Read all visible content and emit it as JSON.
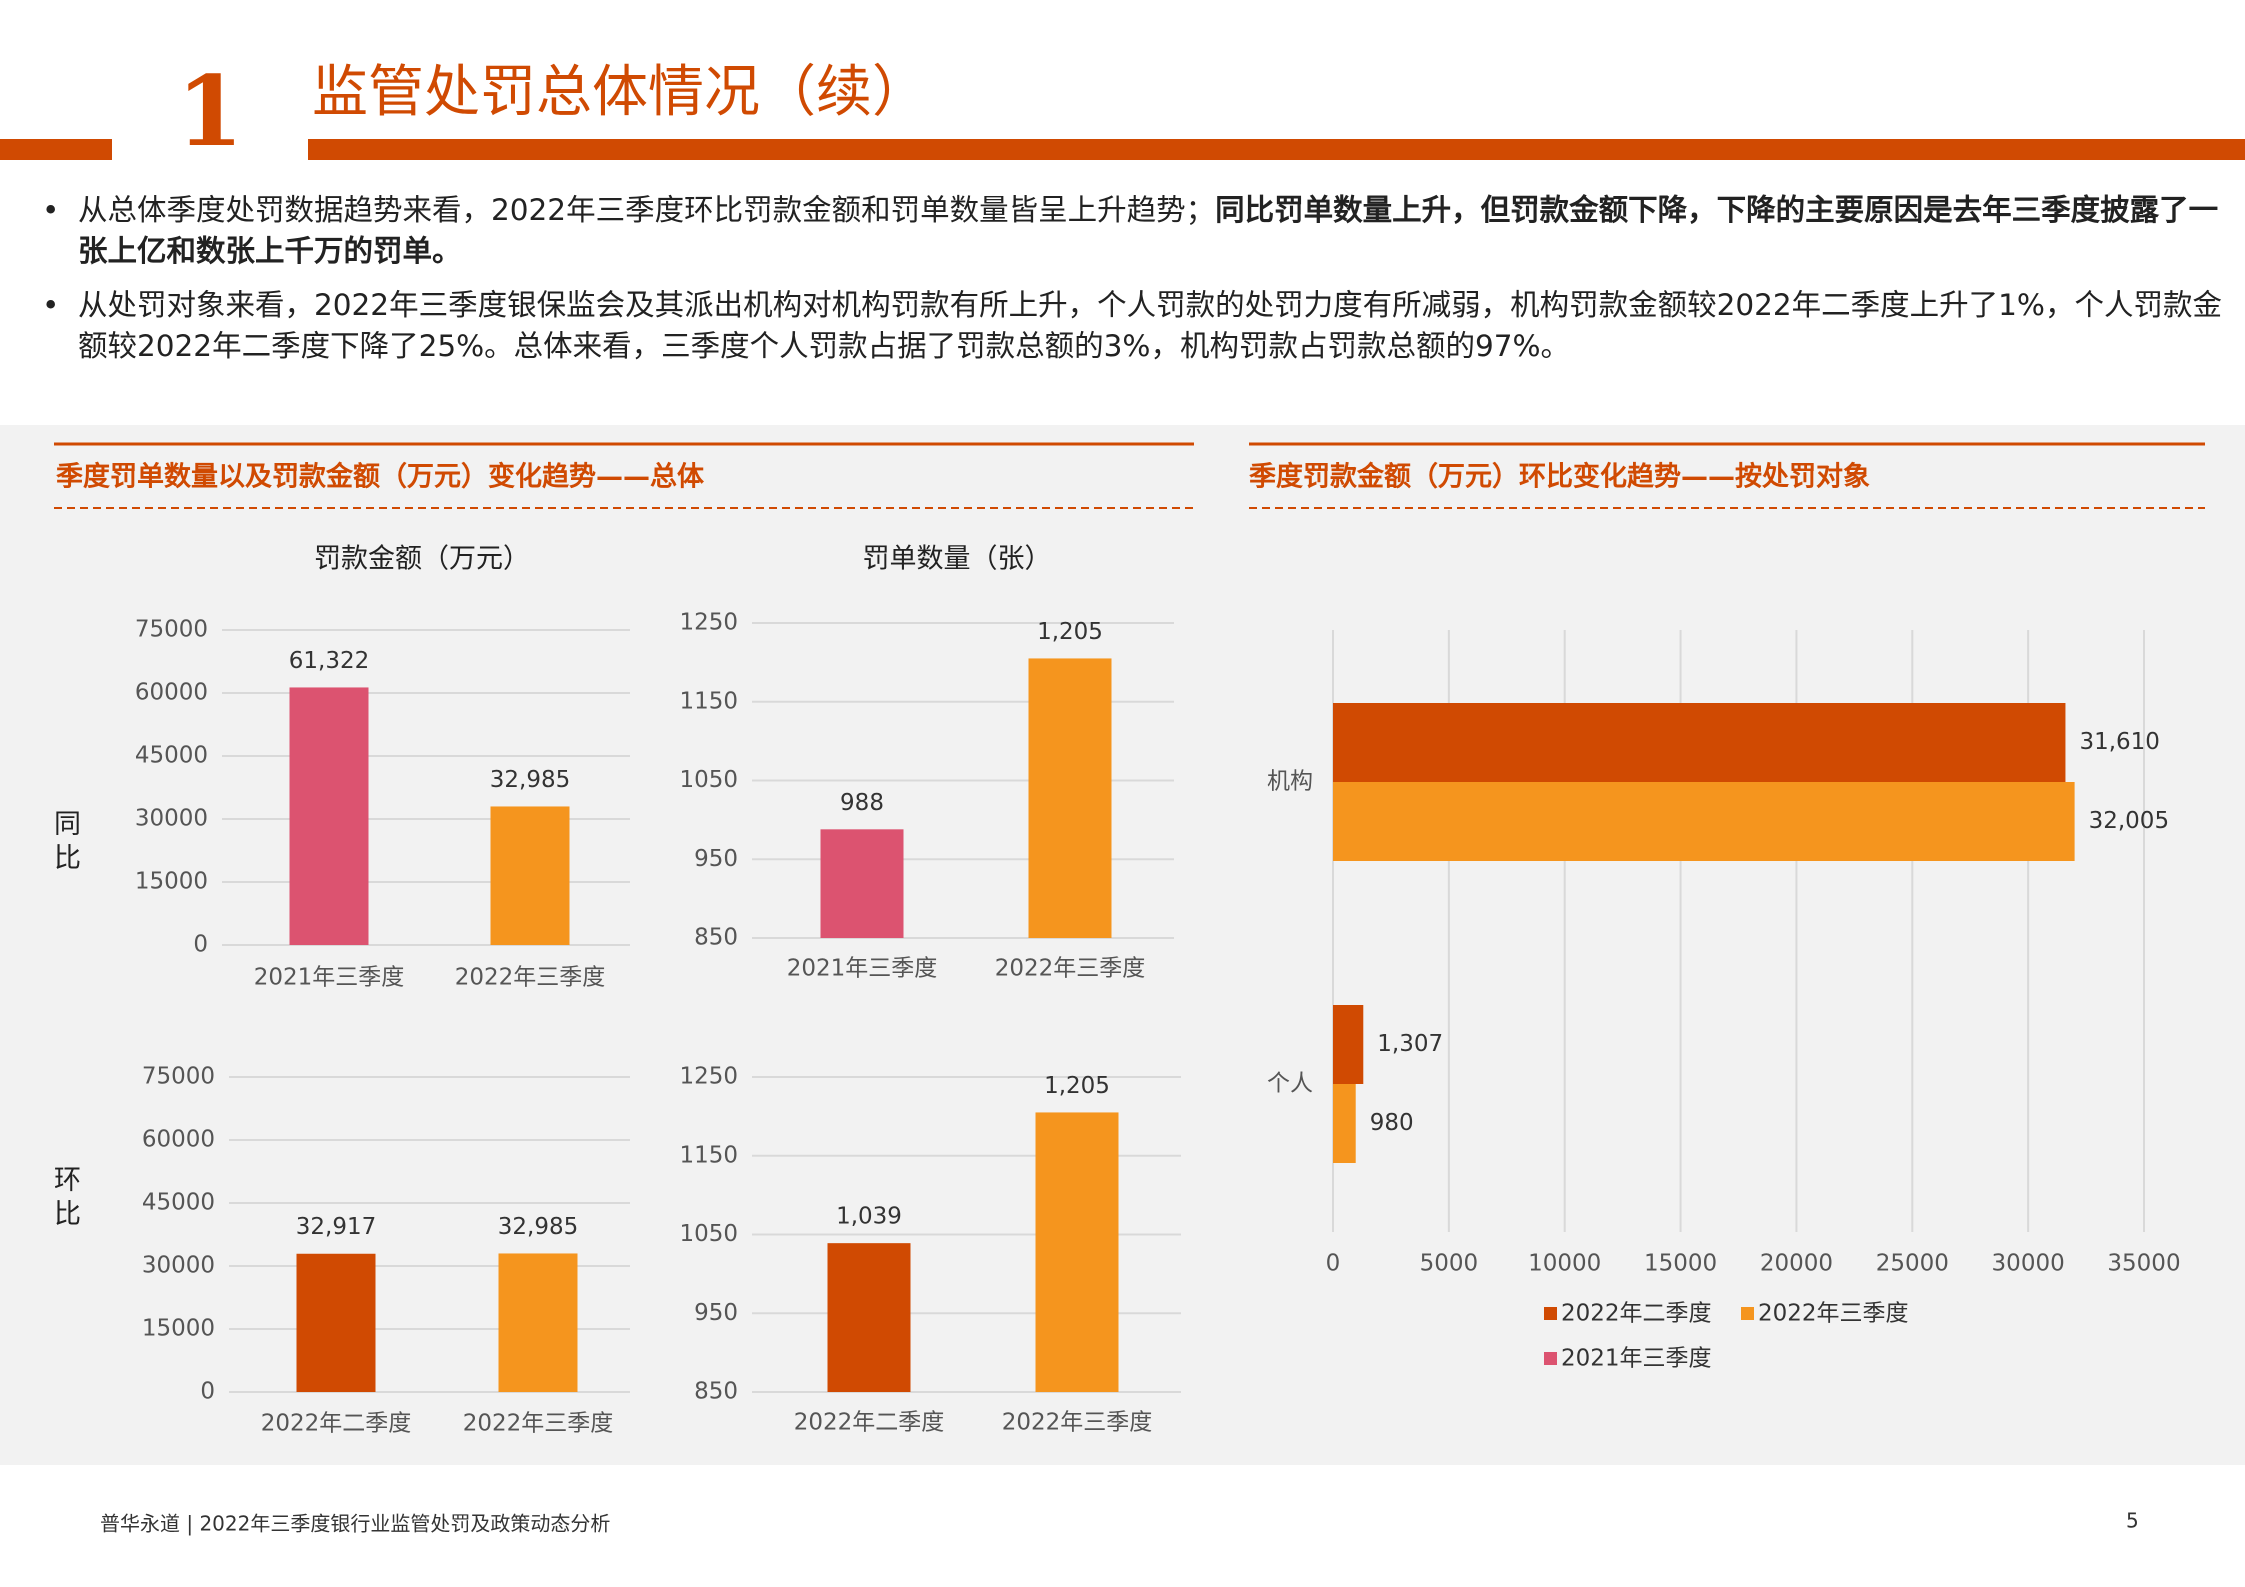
{
  "header": {
    "number": "1",
    "title": "监管处罚总体情况（续）"
  },
  "bullets": [
    [
      "从总体季度处罚数据趋势来看，2022年三季度环比罚款金额和罚单数量皆呈上升趋势；",
      "同比罚单数量上升，但罚款金额下降，下降的主要原因是去年三季度披露了一张上亿和数张上千万的罚单。"
    ],
    [
      "从处罚对象来看，2022年三季度银保监会及其派出机构对机构罚款有所上升，个人罚款的处罚力度有所减弱，机构罚款金额较2022年二季度上升了1%，个人罚款金额较2022年二季度下降了25%。总体来看，三季度个人罚款占据了罚款总额的3%，机构罚款占罚款总额的97%。"
    ]
  ],
  "panels": [
    {
      "title": "季度罚单数量以及罚款金额（万元）变化趋势——总体"
    },
    {
      "title": "季度罚款金额（万元）环比变化趋势——按处罚对象"
    }
  ],
  "row_labels": [
    "同比",
    "环比"
  ],
  "chart_data": [
    {
      "type": "bar",
      "title": "罚款金额（万元）",
      "categories": [
        "2021年三季度",
        "2022年三季度"
      ],
      "values": [
        61322,
        32985
      ],
      "value_labels": [
        "61,322",
        "32,985"
      ],
      "colors": [
        "#dc5370",
        "#f5951e"
      ],
      "ylim": [
        0,
        75000
      ],
      "yticks": [
        0,
        15000,
        30000,
        45000,
        60000,
        75000
      ],
      "grid": true
    },
    {
      "type": "bar",
      "title": "罚单数量（张）",
      "categories": [
        "2021年三季度",
        "2022年三季度"
      ],
      "values": [
        988,
        1205
      ],
      "value_labels": [
        "988",
        "1,205"
      ],
      "colors": [
        "#dc5370",
        "#f5951e"
      ],
      "ylim": [
        850,
        1250
      ],
      "yticks": [
        850,
        950,
        1050,
        1150,
        1250
      ],
      "grid": true
    },
    {
      "type": "bar",
      "categories": [
        "2022年二季度",
        "2022年三季度"
      ],
      "values": [
        32917,
        32985
      ],
      "value_labels": [
        "32,917",
        "32,985"
      ],
      "colors": [
        "#d04a02",
        "#f5951e"
      ],
      "ylim": [
        0,
        75000
      ],
      "yticks": [
        0,
        15000,
        30000,
        45000,
        60000,
        75000
      ],
      "grid": true
    },
    {
      "type": "bar",
      "categories": [
        "2022年二季度",
        "2022年三季度"
      ],
      "values": [
        1039,
        1205
      ],
      "value_labels": [
        "1,039",
        "1,205"
      ],
      "colors": [
        "#d04a02",
        "#f5951e"
      ],
      "ylim": [
        850,
        1250
      ],
      "yticks": [
        850,
        950,
        1050,
        1150,
        1250
      ],
      "grid": true
    },
    {
      "type": "hbar",
      "categories": [
        "机构",
        "个人"
      ],
      "series": [
        {
          "name": "2022年二季度",
          "color": "#d04a02",
          "values": [
            31610,
            1307
          ],
          "value_labels": [
            "31,610",
            "1,307"
          ]
        },
        {
          "name": "2022年三季度",
          "color": "#f5951e",
          "values": [
            32005,
            980
          ],
          "value_labels": [
            "32,005",
            "980"
          ]
        },
        {
          "name": "2021年三季度",
          "color": "#dc5370",
          "values": [
            null,
            null
          ]
        }
      ],
      "xlim": [
        0,
        35000
      ],
      "xticks": [
        0,
        5000,
        10000,
        15000,
        20000,
        25000,
        30000,
        35000
      ],
      "grid": true
    }
  ],
  "footer": {
    "source": "普华永道 | 2022年三季度银行业监管处罚及政策动态分析",
    "page": "5"
  }
}
